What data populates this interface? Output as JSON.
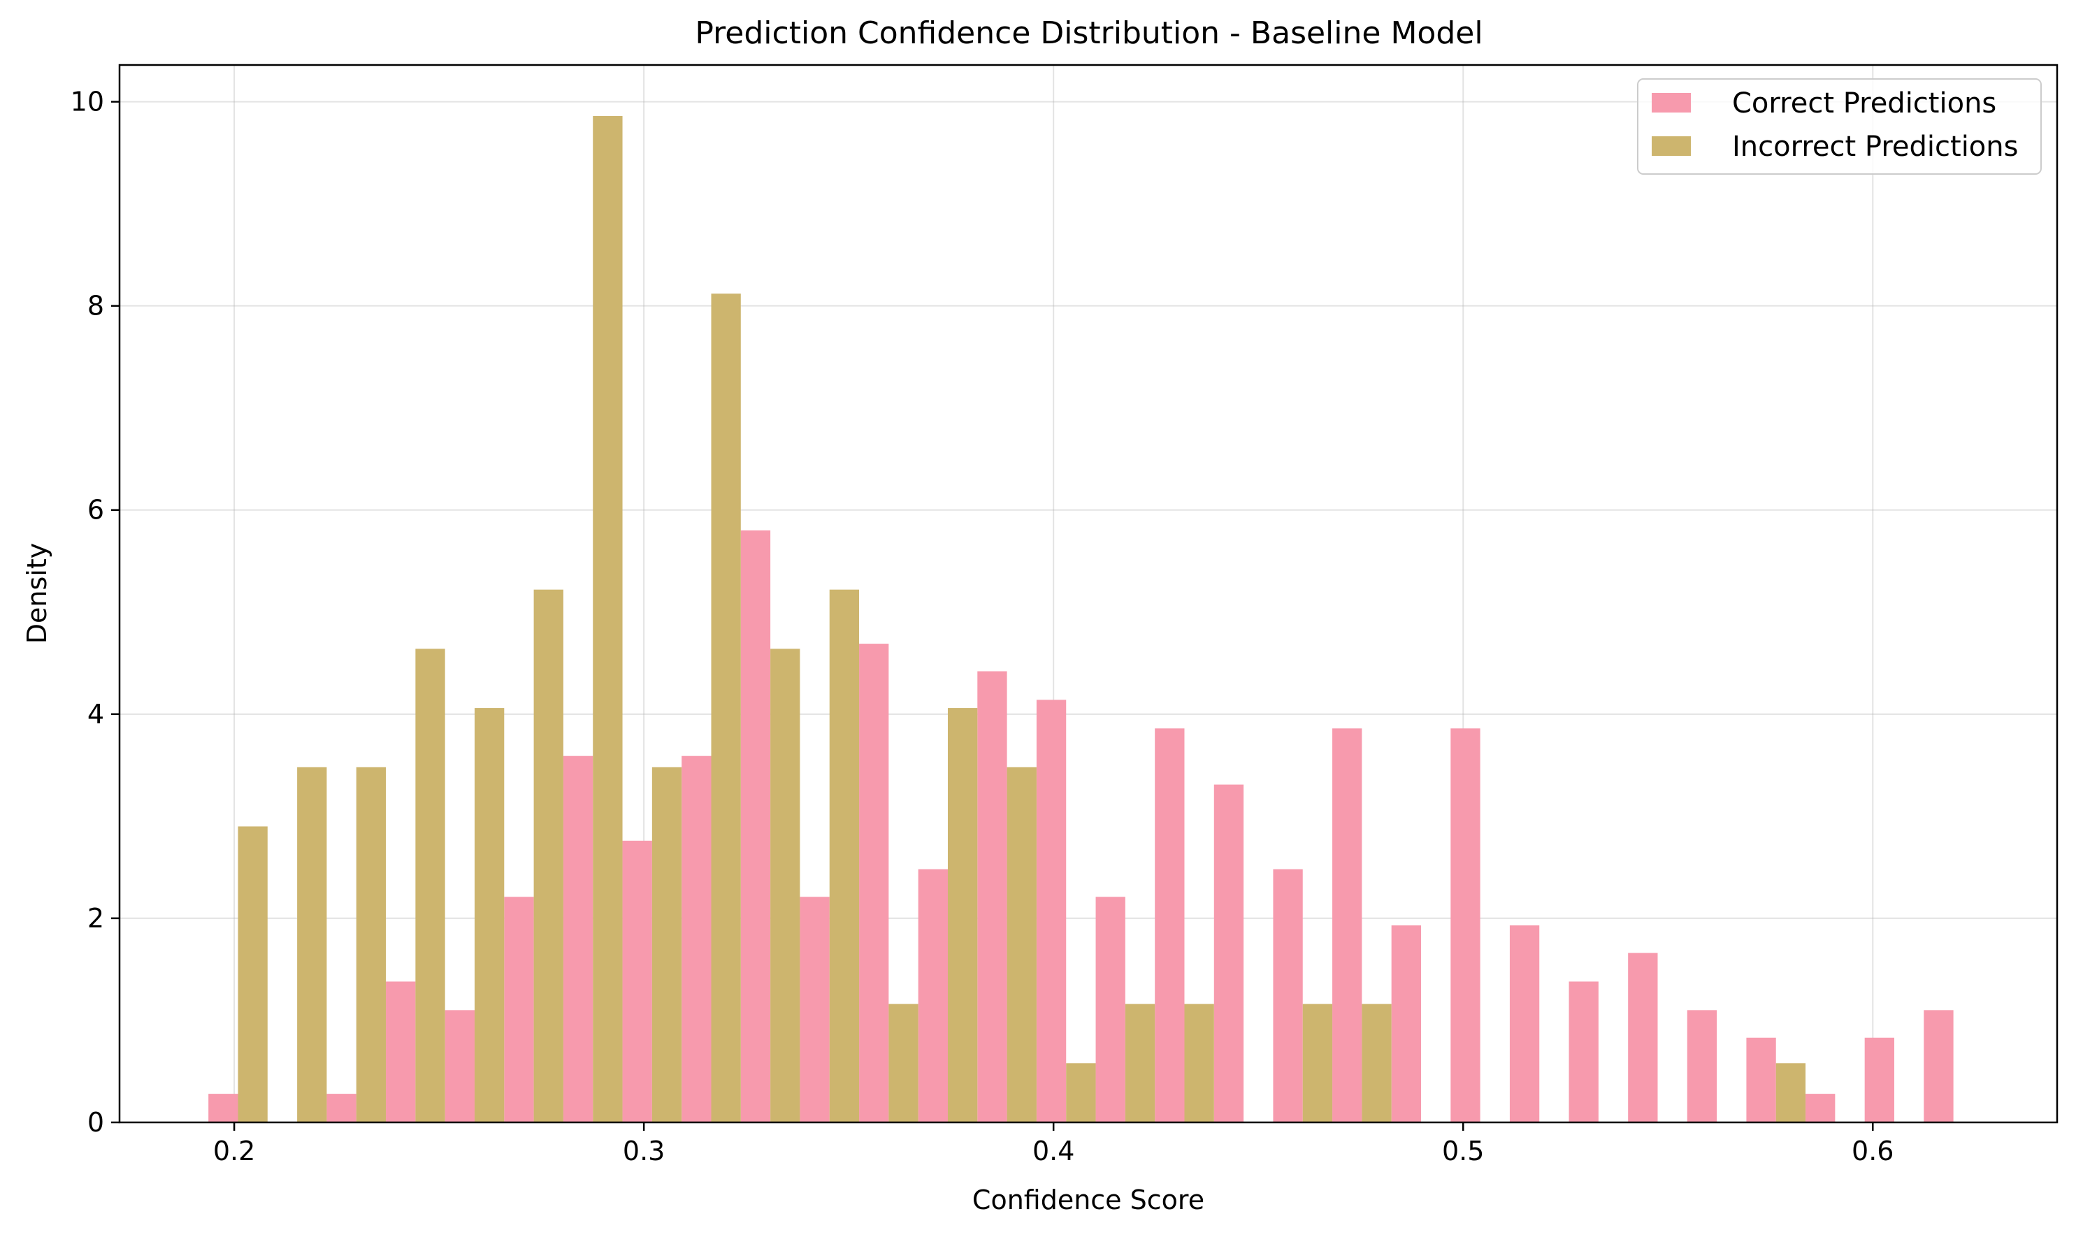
{
  "chart_data": {
    "type": "bar",
    "title": "Prediction Confidence Distribution - Baseline Model",
    "xlabel": "Confidence Score",
    "ylabel": "Density",
    "xlim": [
      0.172,
      0.645
    ],
    "ylim": [
      0,
      10.36
    ],
    "xticks": [
      0.2,
      0.3,
      0.4,
      0.5,
      0.6
    ],
    "xtick_labels": [
      "0.2",
      "0.3",
      "0.4",
      "0.5",
      "0.6"
    ],
    "yticks": [
      0,
      2,
      4,
      6,
      8,
      10
    ],
    "ytick_labels": [
      "0",
      "2",
      "4",
      "6",
      "8",
      "10"
    ],
    "grid": true,
    "legend_position": "top-right",
    "bin_start": 0.1937,
    "bin_width": 0.01444,
    "series": [
      {
        "name": "Correct Predictions",
        "color": "#f79aad",
        "values": [
          0.28,
          0,
          0.28,
          1.38,
          1.1,
          2.21,
          3.59,
          2.76,
          3.59,
          5.8,
          2.21,
          4.69,
          2.48,
          4.42,
          4.14,
          2.21,
          3.86,
          3.31,
          2.48,
          3.86,
          1.93,
          3.86,
          1.93,
          1.38,
          1.66,
          1.1,
          0.83,
          0.28,
          0.83,
          1.1
        ]
      },
      {
        "name": "Incorrect Predictions",
        "color": "#cdb56e",
        "values": [
          2.9,
          3.48,
          3.48,
          4.64,
          4.06,
          5.22,
          9.86,
          3.48,
          8.12,
          4.64,
          5.22,
          1.16,
          4.06,
          3.48,
          0.58,
          1.16,
          1.16,
          0,
          1.16,
          1.16,
          0,
          0,
          0,
          0,
          0,
          0,
          0.58,
          0,
          0,
          0
        ]
      }
    ]
  }
}
